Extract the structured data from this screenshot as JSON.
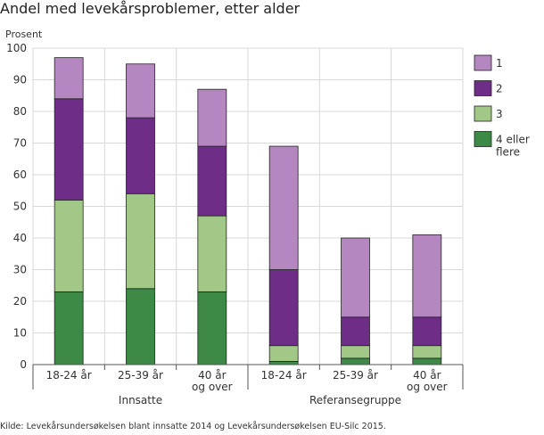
{
  "title": "Andel med levekårsproblemer, etter alder",
  "source": "Kilde: Levekårsundersøkelsen blant innsatte 2014 og Levekårsundersøkelsen EU-Silc 2015.",
  "colors": {
    "s4": "#3c8a46",
    "s3": "#a2c887",
    "s2": "#6e2d87",
    "s1": "#b587c0",
    "grid": "#d9d9d9",
    "axis": "#555555"
  },
  "chart_data": {
    "type": "bar",
    "stacked": true,
    "title": "Andel med levekårsproblemer, etter alder",
    "ylabel": "Prosent",
    "xlabel": "",
    "ylim": [
      0,
      100
    ],
    "yticks": [
      0,
      10,
      20,
      30,
      40,
      50,
      60,
      70,
      80,
      90,
      100
    ],
    "grid": true,
    "legend_position": "right",
    "groups": [
      "Innsatte",
      "Referansegruppe"
    ],
    "categories": [
      {
        "label": [
          "18-24 år"
        ],
        "group": "Innsatte"
      },
      {
        "label": [
          "25-39 år"
        ],
        "group": "Innsatte"
      },
      {
        "label": [
          "40 år",
          "og over"
        ],
        "group": "Innsatte"
      },
      {
        "label": [
          "18-24 år"
        ],
        "group": "Referansegruppe"
      },
      {
        "label": [
          "25-39 år"
        ],
        "group": "Referansegruppe"
      },
      {
        "label": [
          "40 år",
          "og over"
        ],
        "group": "Referansegruppe"
      }
    ],
    "series": [
      {
        "name": "4 eller flere",
        "key": "s4",
        "values": [
          23,
          24,
          23,
          1,
          2,
          2
        ]
      },
      {
        "name": "3",
        "key": "s3",
        "values": [
          29,
          30,
          24,
          5,
          4,
          4
        ]
      },
      {
        "name": "2",
        "key": "s2",
        "values": [
          32,
          24,
          22,
          24,
          9,
          9
        ]
      },
      {
        "name": "1",
        "key": "s1",
        "values": [
          13,
          17,
          18,
          39,
          25,
          26
        ]
      }
    ],
    "legend": [
      {
        "key": "s1",
        "label": [
          "1"
        ]
      },
      {
        "key": "s2",
        "label": [
          "2"
        ]
      },
      {
        "key": "s3",
        "label": [
          "3"
        ]
      },
      {
        "key": "s4",
        "label": [
          "4 eller",
          "flere"
        ]
      }
    ]
  }
}
